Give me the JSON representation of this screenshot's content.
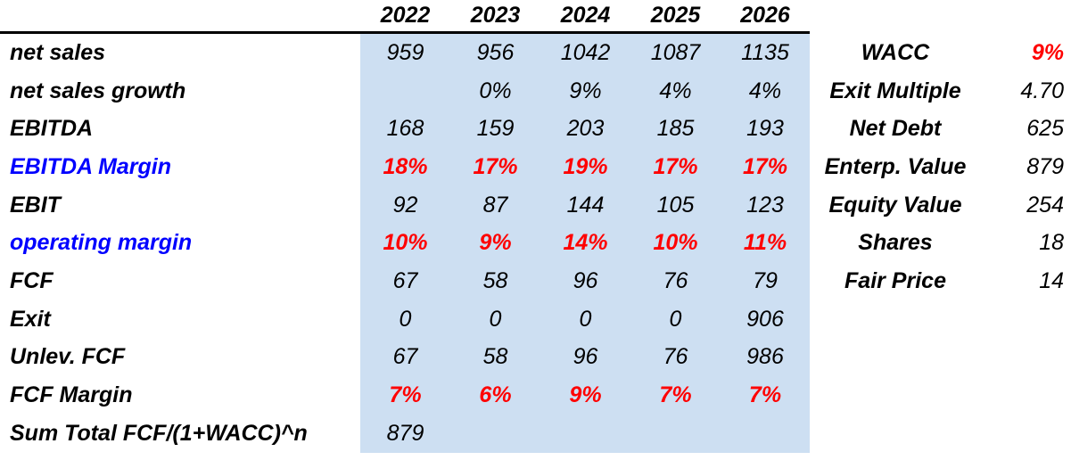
{
  "colors": {
    "accent_blue": "#0000FF",
    "accent_red": "#FF0000",
    "table_bg": "#CDDFF2",
    "text": "#000000"
  },
  "table": {
    "years": [
      "2022",
      "2023",
      "2024",
      "2025",
      "2026"
    ],
    "rows": [
      {
        "label": "net sales",
        "label_color": "black",
        "values": [
          "959",
          "956",
          "1042",
          "1087",
          "1135"
        ],
        "value_style": "normal"
      },
      {
        "label": "net sales growth",
        "label_color": "black",
        "values": [
          "",
          "0%",
          "9%",
          "4%",
          "4%"
        ],
        "value_style": "normal"
      },
      {
        "label": "EBITDA",
        "label_color": "black",
        "values": [
          "168",
          "159",
          "203",
          "185",
          "193"
        ],
        "value_style": "normal"
      },
      {
        "label": "EBITDA Margin",
        "label_color": "blue",
        "values": [
          "18%",
          "17%",
          "19%",
          "17%",
          "17%"
        ],
        "value_style": "red-bold"
      },
      {
        "label": "EBIT",
        "label_color": "black",
        "values": [
          "92",
          "87",
          "144",
          "105",
          "123"
        ],
        "value_style": "normal"
      },
      {
        "label": "operating margin",
        "label_color": "blue",
        "values": [
          "10%",
          "9%",
          "14%",
          "10%",
          "11%"
        ],
        "value_style": "red-bold"
      },
      {
        "label": "FCF",
        "label_color": "black",
        "values": [
          "67",
          "58",
          "96",
          "76",
          "79"
        ],
        "value_style": "normal"
      },
      {
        "label": "Exit",
        "label_color": "black",
        "values": [
          "0",
          "0",
          "0",
          "0",
          "906"
        ],
        "value_style": "normal"
      },
      {
        "label": "Unlev. FCF",
        "label_color": "black",
        "values": [
          "67",
          "58",
          "96",
          "76",
          "986"
        ],
        "value_style": "normal"
      },
      {
        "label": "FCF Margin",
        "label_color": "black",
        "values": [
          "7%",
          "6%",
          "9%",
          "7%",
          "7%"
        ],
        "value_style": "red-bold"
      },
      {
        "label": "Sum Total FCF/(1+WACC)^n",
        "label_color": "black",
        "values": [
          "879",
          "",
          "",
          "",
          ""
        ],
        "value_style": "normal"
      }
    ]
  },
  "summary": {
    "rows": [
      {
        "label": "WACC",
        "value": "9%",
        "value_style": "red-bold"
      },
      {
        "label": "Exit Multiple",
        "value": "4.70",
        "value_style": "normal"
      },
      {
        "label": "Net Debt",
        "value": "625",
        "value_style": "normal"
      },
      {
        "label": "Enterp. Value",
        "value": "879",
        "value_style": "normal"
      },
      {
        "label": "Equity Value",
        "value": "254",
        "value_style": "normal"
      },
      {
        "label": "Shares",
        "value": "18",
        "value_style": "normal"
      },
      {
        "label": "Fair Price",
        "value": "14",
        "value_style": "normal"
      }
    ]
  }
}
